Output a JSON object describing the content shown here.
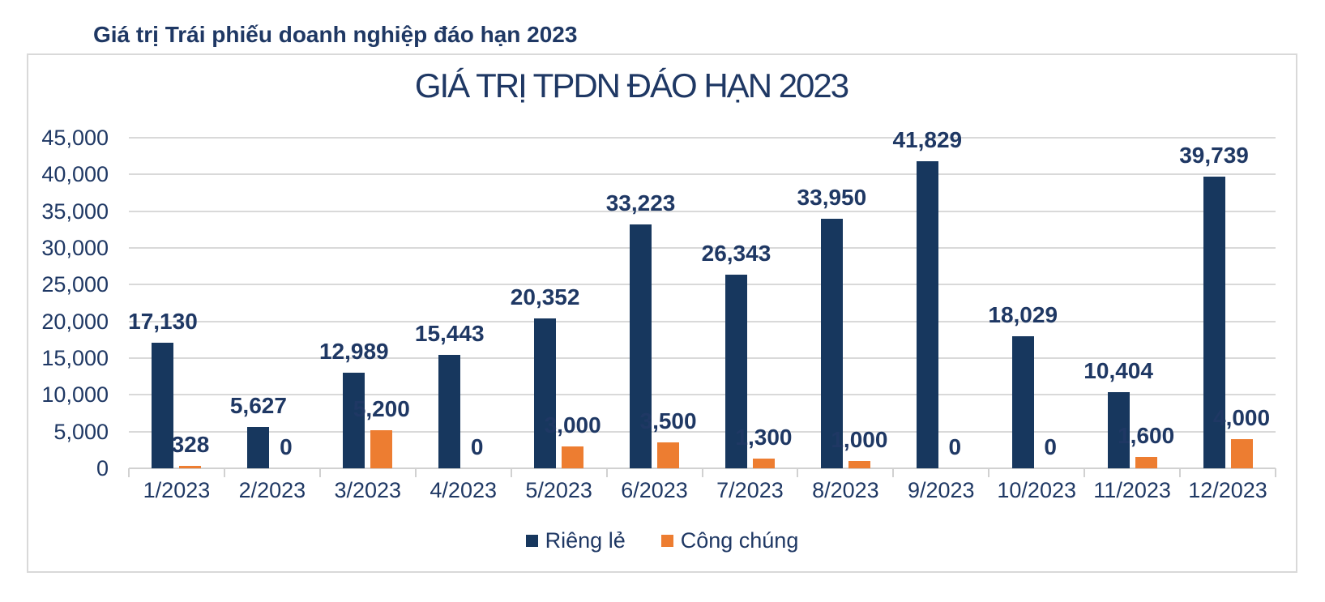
{
  "page_heading": "Giá trị Trái phiếu doanh nghiệp đáo hạn 2023",
  "chart_data": {
    "type": "bar",
    "title": "GIÁ TRỊ TPDN ĐÁO HẠN 2023",
    "categories": [
      "1/2023",
      "2/2023",
      "3/2023",
      "4/2023",
      "5/2023",
      "6/2023",
      "7/2023",
      "8/2023",
      "9/2023",
      "10/2023",
      "11/2023",
      "12/2023"
    ],
    "series": [
      {
        "name": "Riêng lẻ",
        "color": "#17375E",
        "values": [
          17130,
          5627,
          12989,
          15443,
          20352,
          33223,
          26343,
          33950,
          41829,
          18029,
          10404,
          39739
        ],
        "value_labels": [
          "17,130",
          "5,627",
          "12,989",
          "15,443",
          "20,352",
          "33,223",
          "26,343",
          "33,950",
          "41,829",
          "18,029",
          "10,404",
          "39,739"
        ]
      },
      {
        "name": "Công chúng",
        "color": "#ED7D31",
        "values": [
          328,
          0,
          5200,
          0,
          3000,
          3500,
          1300,
          1000,
          0,
          0,
          1600,
          4000
        ],
        "value_labels": [
          "328",
          "0",
          "5,200",
          "0",
          "3,000",
          "3,500",
          "1,300",
          "1,000",
          "0",
          "0",
          "1,600",
          "4,000"
        ]
      }
    ],
    "y_axis": {
      "min": 0,
      "max": 45000,
      "step": 5000,
      "tick_labels": [
        "0",
        "5,000",
        "10,000",
        "15,000",
        "20,000",
        "25,000",
        "30,000",
        "35,000",
        "40,000",
        "45,000"
      ]
    },
    "legend_position": "bottom",
    "grid": true,
    "colors": {
      "text_navy": "#1F3864",
      "gridline": "#D9D9D9"
    }
  }
}
